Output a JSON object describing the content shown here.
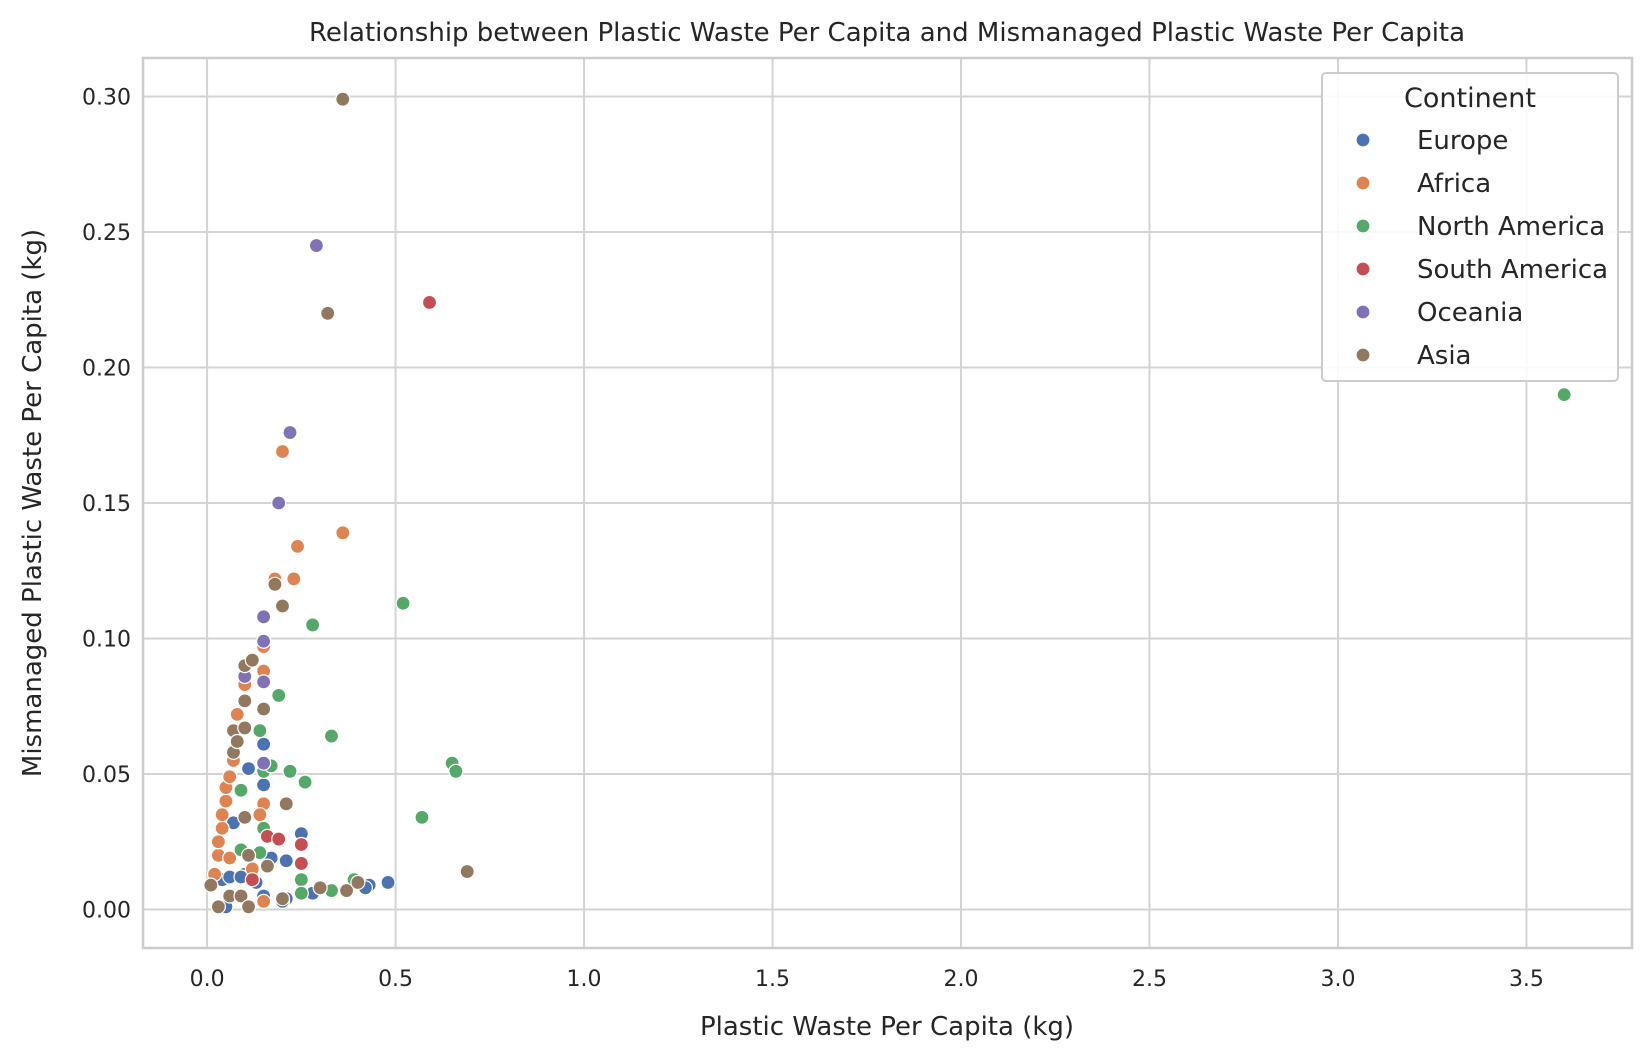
{
  "chart_data": {
    "type": "scatter",
    "title": "Relationship between Plastic Waste Per Capita and Mismanaged Plastic Waste Per Capita",
    "xlabel": "Plastic Waste Per Capita (kg)",
    "ylabel": "Mismanaged Plastic Waste Per Capita (kg)",
    "xlim": [
      -0.17,
      3.78
    ],
    "ylim": [
      -0.0142,
      0.3142
    ],
    "xticks": [
      0.0,
      0.5,
      1.0,
      1.5,
      2.0,
      2.5,
      3.0,
      3.5
    ],
    "xtick_labels": [
      "0.0",
      "0.5",
      "1.0",
      "1.5",
      "2.0",
      "2.5",
      "3.0",
      "3.5"
    ],
    "yticks": [
      0.0,
      0.05,
      0.1,
      0.15,
      0.2,
      0.25,
      0.3
    ],
    "ytick_labels": [
      "0.00",
      "0.05",
      "0.10",
      "0.15",
      "0.20",
      "0.25",
      "0.30"
    ],
    "grid": true,
    "legend": {
      "title": "Continent",
      "location": "top-right"
    },
    "series": [
      {
        "name": "Europe",
        "color": "#4c72b0",
        "points": [
          [
            0.05,
            0.001
          ],
          [
            0.04,
            0.011
          ],
          [
            0.07,
            0.032
          ],
          [
            0.1,
            0.013
          ],
          [
            0.11,
            0.052
          ],
          [
            0.15,
            0.061
          ],
          [
            0.15,
            0.046
          ],
          [
            0.15,
            0.005
          ],
          [
            0.17,
            0.019
          ],
          [
            0.21,
            0.018
          ],
          [
            0.21,
            0.004
          ],
          [
            0.25,
            0.028
          ],
          [
            0.28,
            0.006
          ],
          [
            0.43,
            0.009
          ],
          [
            0.42,
            0.008
          ],
          [
            0.48,
            0.01
          ],
          [
            0.06,
            0.012
          ],
          [
            0.09,
            0.012
          ],
          [
            0.13,
            0.01
          ],
          [
            0.2,
            0.003
          ]
        ]
      },
      {
        "name": "Africa",
        "color": "#dd8452",
        "points": [
          [
            0.02,
            0.013
          ],
          [
            0.03,
            0.02
          ],
          [
            0.03,
            0.025
          ],
          [
            0.04,
            0.03
          ],
          [
            0.04,
            0.035
          ],
          [
            0.05,
            0.04
          ],
          [
            0.05,
            0.045
          ],
          [
            0.06,
            0.049
          ],
          [
            0.06,
            0.019
          ],
          [
            0.07,
            0.055
          ],
          [
            0.08,
            0.072
          ],
          [
            0.1,
            0.083
          ],
          [
            0.15,
            0.088
          ],
          [
            0.15,
            0.097
          ],
          [
            0.15,
            0.039
          ],
          [
            0.14,
            0.035
          ],
          [
            0.18,
            0.122
          ],
          [
            0.2,
            0.169
          ],
          [
            0.23,
            0.122
          ],
          [
            0.24,
            0.134
          ],
          [
            0.36,
            0.139
          ],
          [
            0.15,
            0.003
          ],
          [
            0.12,
            0.015
          ]
        ]
      },
      {
        "name": "North America",
        "color": "#55a868",
        "points": [
          [
            0.09,
            0.044
          ],
          [
            0.09,
            0.022
          ],
          [
            0.14,
            0.066
          ],
          [
            0.15,
            0.051
          ],
          [
            0.15,
            0.03
          ],
          [
            0.17,
            0.053
          ],
          [
            0.19,
            0.079
          ],
          [
            0.22,
            0.051
          ],
          [
            0.26,
            0.047
          ],
          [
            0.25,
            0.011
          ],
          [
            0.25,
            0.006
          ],
          [
            0.28,
            0.105
          ],
          [
            0.33,
            0.064
          ],
          [
            0.33,
            0.007
          ],
          [
            0.39,
            0.011
          ],
          [
            0.52,
            0.113
          ],
          [
            0.57,
            0.034
          ],
          [
            0.65,
            0.054
          ],
          [
            0.66,
            0.051
          ],
          [
            3.6,
            0.19
          ],
          [
            0.14,
            0.021
          ]
        ]
      },
      {
        "name": "South America",
        "color": "#c44e52",
        "points": [
          [
            0.12,
            0.011
          ],
          [
            0.16,
            0.027
          ],
          [
            0.19,
            0.026
          ],
          [
            0.25,
            0.024
          ],
          [
            0.25,
            0.017
          ],
          [
            0.59,
            0.224
          ]
        ]
      },
      {
        "name": "Oceania",
        "color": "#8172b3",
        "points": [
          [
            0.1,
            0.086
          ],
          [
            0.15,
            0.108
          ],
          [
            0.15,
            0.099
          ],
          [
            0.15,
            0.084
          ],
          [
            0.15,
            0.054
          ],
          [
            0.19,
            0.15
          ],
          [
            0.22,
            0.176
          ],
          [
            0.29,
            0.245
          ]
        ]
      },
      {
        "name": "Asia",
        "color": "#937860",
        "points": [
          [
            0.01,
            0.009
          ],
          [
            0.03,
            0.001
          ],
          [
            0.06,
            0.005
          ],
          [
            0.07,
            0.058
          ],
          [
            0.07,
            0.066
          ],
          [
            0.08,
            0.062
          ],
          [
            0.09,
            0.005
          ],
          [
            0.1,
            0.034
          ],
          [
            0.1,
            0.067
          ],
          [
            0.1,
            0.077
          ],
          [
            0.1,
            0.09
          ],
          [
            0.12,
            0.092
          ],
          [
            0.11,
            0.001
          ],
          [
            0.11,
            0.02
          ],
          [
            0.15,
            0.074
          ],
          [
            0.16,
            0.016
          ],
          [
            0.18,
            0.12
          ],
          [
            0.2,
            0.112
          ],
          [
            0.21,
            0.039
          ],
          [
            0.3,
            0.008
          ],
          [
            0.32,
            0.22
          ],
          [
            0.36,
            0.299
          ],
          [
            0.37,
            0.007
          ],
          [
            0.4,
            0.01
          ],
          [
            0.69,
            0.014
          ],
          [
            0.2,
            0.004
          ]
        ]
      }
    ]
  }
}
